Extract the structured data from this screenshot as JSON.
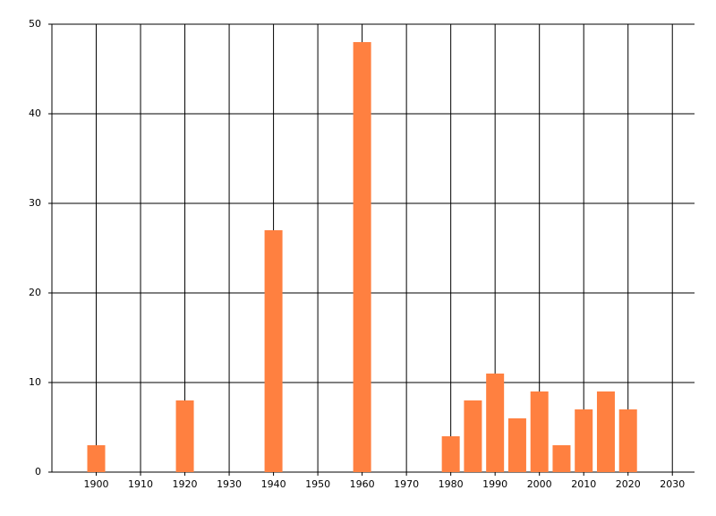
{
  "chart_data": {
    "type": "bar",
    "x": [
      1900,
      1920,
      1940,
      1960,
      1980,
      1985,
      1990,
      1995,
      2000,
      2005,
      2010,
      2015,
      2020
    ],
    "values": [
      3,
      8,
      27,
      48,
      4,
      8,
      11,
      6,
      9,
      3,
      7,
      9,
      7
    ],
    "color": "#ff8040",
    "xlim": [
      1890,
      2035
    ],
    "xticks": [
      1900,
      1910,
      1920,
      1930,
      1940,
      1950,
      1960,
      1970,
      1980,
      1990,
      2000,
      2010,
      2020,
      2030
    ],
    "ylim": [
      0,
      50
    ],
    "yticks": [
      0,
      10,
      20,
      30,
      40,
      50
    ],
    "grid": true
  }
}
